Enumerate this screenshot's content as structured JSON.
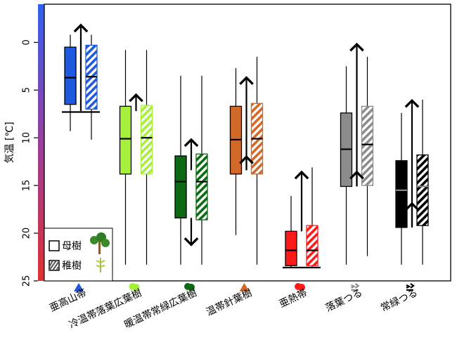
{
  "chart_data": {
    "type": "box",
    "ylabel": "気温 [℃]",
    "ylim": [
      -4,
      25
    ],
    "y_inverted": true,
    "yticks": [
      0,
      5,
      10,
      15,
      20,
      25
    ],
    "legend": {
      "position": "bottom-left",
      "entries": [
        {
          "label": "母樹",
          "style": "solid"
        },
        {
          "label": "稚樹",
          "style": "hatched"
        }
      ]
    },
    "categories": [
      {
        "name": "亜高山帯",
        "color": "#1e5ae0",
        "icon": "conifer-icon",
        "mother": {
          "whisker_low": -0.8,
          "q1": 0.5,
          "median": 3.7,
          "q3": 6.5,
          "whisker_high": 9.3
        },
        "seedling": {
          "whisker_low": -0.8,
          "q1": 0.3,
          "median": 3.6,
          "q3": 7.0,
          "whisker_high": 10.2
        },
        "shift": {
          "from": 7.2,
          "to": -1.8
        },
        "baseline": 7.3
      },
      {
        "name": "冷温帯落葉広葉樹",
        "color": "#a6f03b",
        "icon": "deciduous-tree-icon",
        "mother": {
          "whisker_low": 0.8,
          "q1": 6.7,
          "median": 10.1,
          "q3": 13.8,
          "whisker_high": 23.3
        },
        "seedling": {
          "whisker_low": 0.8,
          "q1": 6.6,
          "median": 10.0,
          "q3": 13.8,
          "whisker_high": 23.3
        },
        "shift": {
          "from": 7.2,
          "to": 5.5
        }
      },
      {
        "name": "暖温帯常緑広葉樹",
        "color": "#0c6b12",
        "icon": "broadleaf-tree-icon",
        "mother": {
          "whisker_low": 3.5,
          "q1": 11.9,
          "median": 14.6,
          "q3": 18.4,
          "whisker_high": 23.3
        },
        "seedling": {
          "whisker_low": 3.5,
          "q1": 11.7,
          "median": 14.6,
          "q3": 18.6,
          "whisker_high": 23.3
        },
        "shift": {
          "from": 13.4,
          "to": 10.2
        },
        "shift_down": {
          "from": 18.4,
          "to": 21.2
        }
      },
      {
        "name": "温帯針葉樹",
        "color": "#d0692a",
        "icon": "conifer-icon",
        "mother": {
          "whisker_low": 2.7,
          "q1": 6.7,
          "median": 10.2,
          "q3": 13.8,
          "whisker_high": 20.2
        },
        "seedling": {
          "whisker_low": 1.5,
          "q1": 6.4,
          "median": 10.1,
          "q3": 13.8,
          "whisker_high": 23.3
        },
        "shift": {
          "from": 13.4,
          "to": 3.7
        },
        "shift_low": {
          "from": 13.4,
          "to": 12.0
        }
      },
      {
        "name": "亜熱帯",
        "color": "#ff1a1a",
        "icon": "tropical-tree-icon",
        "mother": {
          "whisker_low": 16.1,
          "q1": 19.8,
          "median": 21.8,
          "q3": 23.4,
          "whisker_high": 23.6
        },
        "seedling": {
          "whisker_low": 13.1,
          "q1": 19.2,
          "median": 21.8,
          "q3": 23.4,
          "whisker_high": 23.6
        },
        "shift": {
          "from": 19.8,
          "to": 13.6
        },
        "baseline": 23.6
      },
      {
        "name": "落葉つる",
        "color": "#8c8c8c",
        "icon": "vine-icon",
        "mother": {
          "whisker_low": 2.5,
          "q1": 7.4,
          "median": 11.2,
          "q3": 15.1,
          "whisker_high": 23.3
        },
        "seedling": {
          "whisker_low": 1.5,
          "q1": 6.7,
          "median": 10.7,
          "q3": 15.0,
          "whisker_high": 22.4
        },
        "shift": {
          "from": 15.1,
          "to": 0.2
        },
        "shift_low": {
          "from": 15.1,
          "to": 13.6
        }
      },
      {
        "name": "常緑つる",
        "color": "#000000",
        "icon": "vine-icon",
        "mother": {
          "whisker_low": 7.4,
          "q1": 12.4,
          "median": 15.5,
          "q3": 19.4,
          "whisker_high": 23.3
        },
        "seedling": {
          "whisker_low": 6.0,
          "q1": 11.8,
          "median": 15.1,
          "q3": 19.2,
          "whisker_high": 23.3
        },
        "shift": {
          "from": 19.4,
          "to": 6.1
        },
        "shift_low": {
          "from": 19.4,
          "to": 16.9
        }
      }
    ],
    "colorbar": {
      "top_color": "#3060f0",
      "bottom_color": "#e03030"
    }
  }
}
